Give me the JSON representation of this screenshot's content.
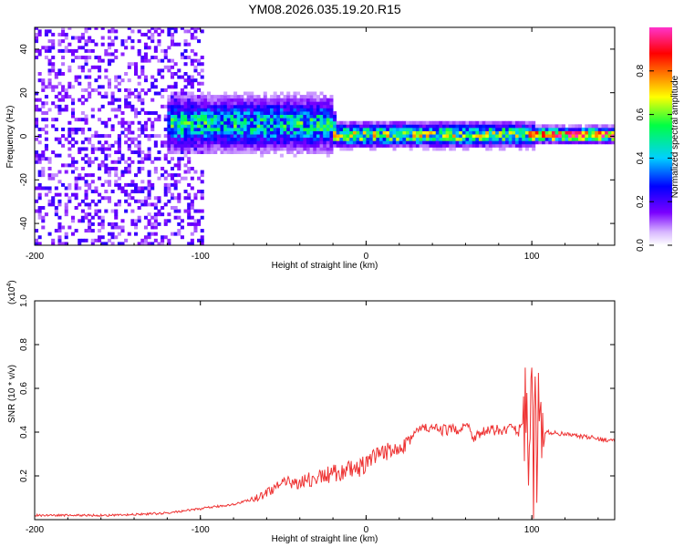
{
  "title": "YM08.2026.035.19.20.R15",
  "colors": {
    "snr_line": "#ee3333",
    "frame": "#000000",
    "background": "#ffffff"
  },
  "chart_data": [
    {
      "type": "heatmap",
      "panel": "spectrogram",
      "xlabel": "Height of straight line (km)",
      "ylabel": "Frequency (Hz)",
      "xlim": [
        -200,
        150
      ],
      "ylim": [
        -50,
        50
      ],
      "xticks": [
        -200,
        -100,
        0,
        100
      ],
      "xtick_labels": [
        "-200",
        "-100",
        "0",
        "100"
      ],
      "yticks": [
        40,
        20,
        0,
        -20,
        -40
      ],
      "ytick_labels": [
        "40",
        "20",
        "0",
        "-20",
        "-40"
      ],
      "colorbar": {
        "label": "Normalized spectral amplitude",
        "range": [
          0,
          1
        ],
        "ticks": [
          0.0,
          0.2,
          0.4,
          0.6,
          0.8
        ],
        "tick_labels": [
          "0.0",
          "0.2",
          "0.4",
          "0.6",
          "0.8"
        ],
        "colormap": [
          "#ffffff",
          "#7a00ff",
          "#0000ff",
          "#00d0ff",
          "#00ff44",
          "#ffff00",
          "#ff8000",
          "#ff0000",
          "#ff33cc"
        ]
      },
      "features": [
        {
          "x_range": [
            -200,
            -100
          ],
          "description_value": "scattered noise",
          "freq_spread_hz": 50,
          "amplitude": 0.1
        },
        {
          "x_range": [
            -120,
            -20
          ],
          "center_freq_hz": 5,
          "amplitude": 0.45
        },
        {
          "x_range": [
            -20,
            100
          ],
          "center_freq_hz": 0,
          "amplitude": 0.6
        },
        {
          "x_range": [
            97,
            106
          ],
          "center_freq_hz": 0,
          "amplitude": 0.9
        },
        {
          "x_range": [
            106,
            150
          ],
          "center_freq_hz": 0,
          "amplitude": 0.95
        }
      ]
    },
    {
      "type": "line",
      "panel": "snr",
      "xlabel": "Height of straight line (km)",
      "ylabel": "SNR (10 * v/v)",
      "y_multiplier": "(x10",
      "y_multiplier_exp": "4",
      "y_multiplier_close": ")",
      "xlim": [
        -200,
        150
      ],
      "ylim": [
        0,
        1.0
      ],
      "xticks": [
        -200,
        -100,
        0,
        100
      ],
      "xtick_labels": [
        "-200",
        "-100",
        "0",
        "100"
      ],
      "yticks": [
        0.2,
        0.4,
        0.6,
        0.8,
        1.0
      ],
      "ytick_labels": [
        "0.2",
        "0.4",
        "0.6",
        "0.8",
        "1.0"
      ],
      "series": [
        {
          "name": "SNR",
          "x": [
            -200,
            -150,
            -120,
            -100,
            -80,
            -65,
            -55,
            -45,
            -35,
            -25,
            -15,
            -5,
            5,
            15,
            25,
            30,
            35,
            45,
            55,
            60,
            65,
            70,
            80,
            88,
            92,
            96,
            98,
            100,
            101,
            102,
            103,
            104,
            106,
            108,
            110,
            120,
            130,
            140,
            150
          ],
          "y": [
            0.02,
            0.02,
            0.03,
            0.05,
            0.07,
            0.1,
            0.15,
            0.17,
            0.18,
            0.2,
            0.22,
            0.23,
            0.28,
            0.32,
            0.36,
            0.4,
            0.42,
            0.41,
            0.41,
            0.44,
            0.38,
            0.4,
            0.41,
            0.42,
            0.4,
            0.5,
            0.3,
            0.75,
            0.1,
            0.6,
            0.08,
            0.65,
            0.25,
            0.4,
            0.4,
            0.39,
            0.38,
            0.37,
            0.36
          ]
        }
      ]
    }
  ]
}
